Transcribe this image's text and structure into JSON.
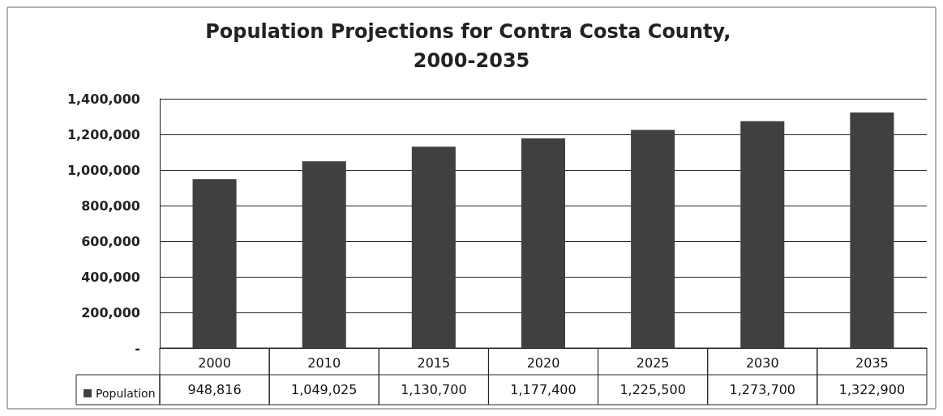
{
  "chart_data": {
    "type": "bar",
    "title": "Population Projections for Contra Costa County, 2000-2035",
    "categories": [
      "2000",
      "2010",
      "2015",
      "2020",
      "2025",
      "2030",
      "2035"
    ],
    "series": [
      {
        "name": "Population",
        "color": "#404040",
        "values": [
          948816,
          1049025,
          1130700,
          1177400,
          1225500,
          1273700,
          1322900
        ],
        "value_labels": [
          "948,816",
          "1,049,025",
          "1,130,700",
          "1,177,400",
          "1,225,500",
          "1,273,700",
          "1,322,900"
        ]
      }
    ],
    "ylim": [
      0,
      1400000
    ],
    "yticks": [
      {
        "value": 0,
        "label": "-"
      },
      {
        "value": 200000,
        "label": "200,000"
      },
      {
        "value": 400000,
        "label": "400,000"
      },
      {
        "value": 600000,
        "label": "600,000"
      },
      {
        "value": 800000,
        "label": "800,000"
      },
      {
        "value": 1000000,
        "label": "1,000,000"
      },
      {
        "value": 1200000,
        "label": "1,200,000"
      },
      {
        "value": 1400000,
        "label": "1,400,000"
      }
    ],
    "grid": "y",
    "legend": "bottom"
  }
}
